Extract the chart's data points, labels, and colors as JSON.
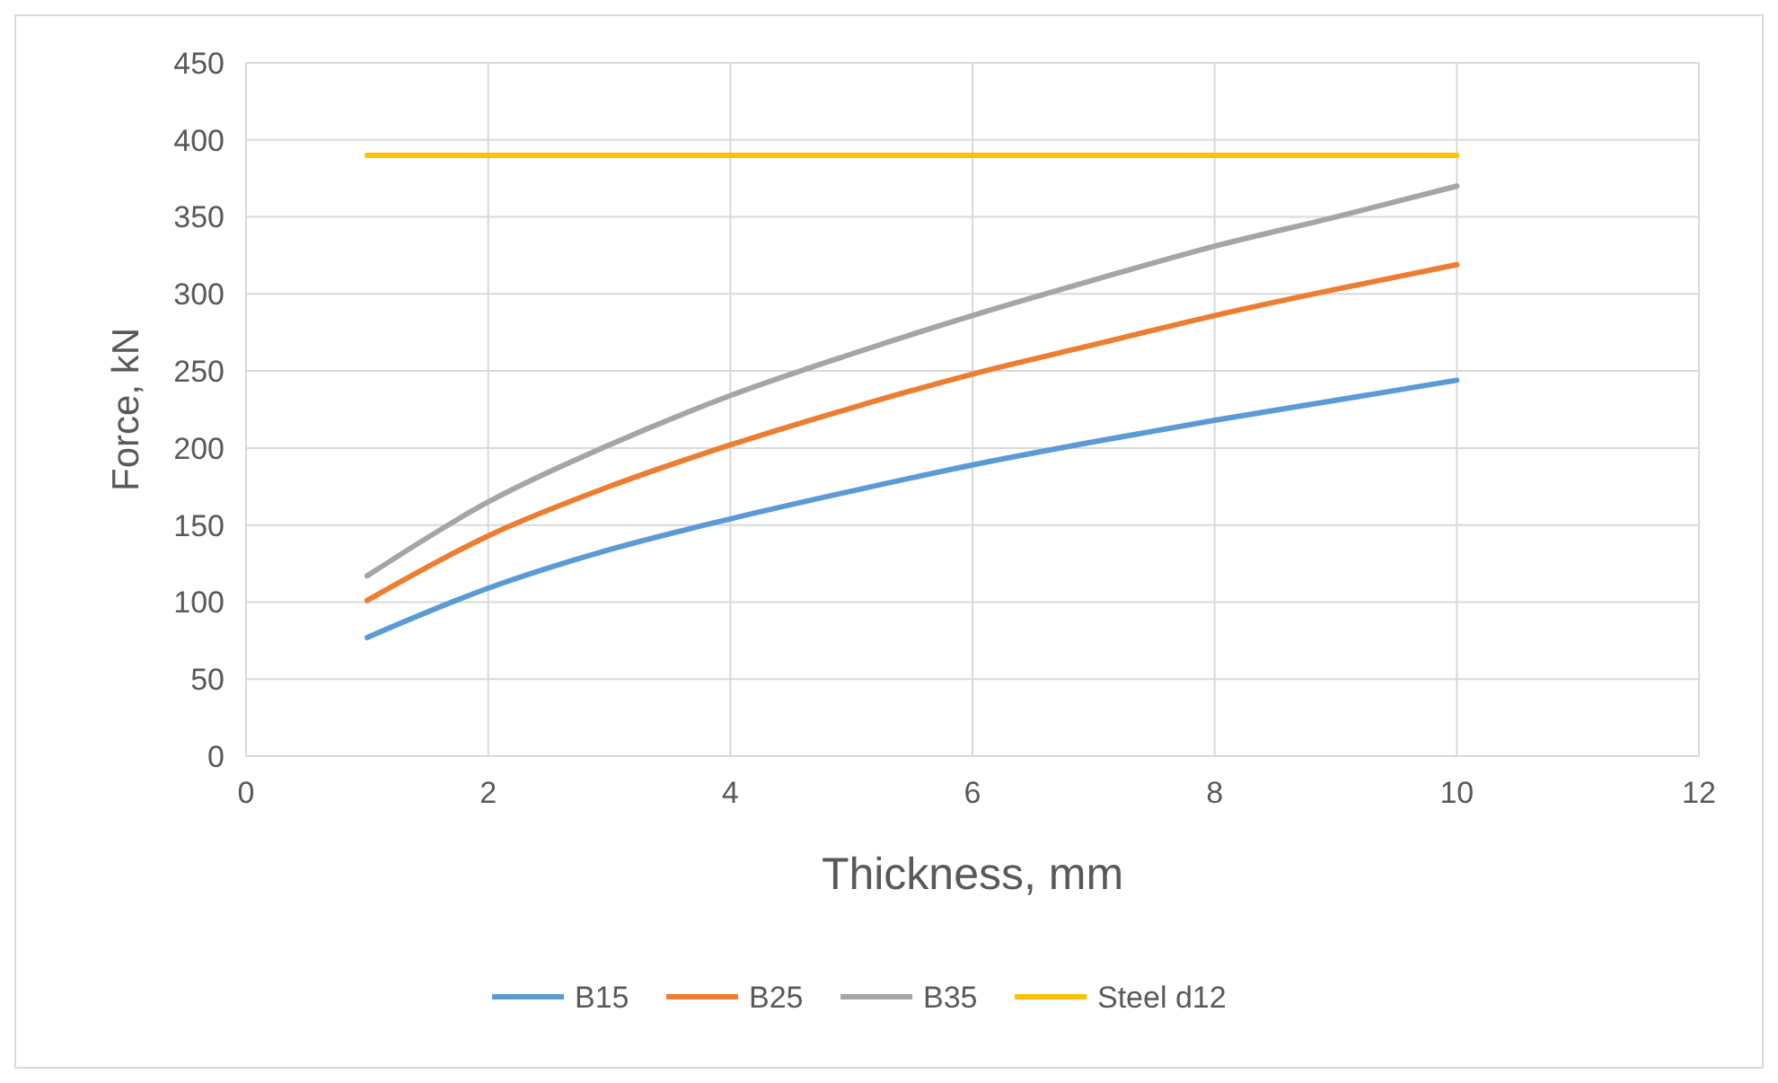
{
  "chart_data": {
    "type": "line",
    "xlabel": "Thickness, mm",
    "ylabel": "Force, kN",
    "x": [
      1,
      2,
      3,
      4,
      5,
      6,
      7,
      8,
      9,
      10
    ],
    "series": [
      {
        "name": "B15",
        "color": "#5b9bd5",
        "values": [
          77,
          109,
          134,
          154,
          172,
          189,
          204,
          218,
          231,
          244
        ]
      },
      {
        "name": "B25",
        "color": "#ed7d31",
        "values": [
          101,
          143,
          175,
          202,
          226,
          248,
          267,
          286,
          303,
          319
        ]
      },
      {
        "name": "B35",
        "color": "#a5a5a5",
        "values": [
          117,
          165,
          202,
          234,
          261,
          286,
          309,
          331,
          350,
          370
        ]
      },
      {
        "name": "Steel d12",
        "color": "#ffc000",
        "values": [
          390,
          390,
          390,
          390,
          390,
          390,
          390,
          390,
          390,
          390
        ]
      }
    ],
    "xlim": [
      0,
      12
    ],
    "xticks": [
      0,
      2,
      4,
      6,
      8,
      10,
      12
    ],
    "ylim": [
      0,
      450
    ],
    "yticks": [
      0,
      50,
      100,
      150,
      200,
      250,
      300,
      350,
      400,
      450
    ],
    "grid": true,
    "legend": "bottom",
    "marker": "none",
    "line_style": "solid"
  }
}
